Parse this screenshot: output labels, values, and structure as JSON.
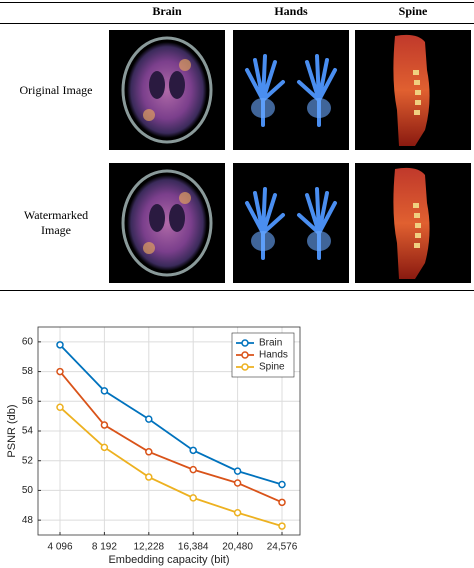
{
  "table": {
    "columns": [
      "Brain",
      "Hands",
      "Spine"
    ],
    "rows": [
      {
        "label": "Original Image"
      },
      {
        "label": "Watermarked Image"
      }
    ]
  },
  "chart_data": {
    "type": "line",
    "xlabel": "Embedding capacity (bit)",
    "ylabel": "PSNR (db)",
    "categories": [
      "4 096",
      "8 192",
      "12,228",
      "16,384",
      "20,480",
      "24,576"
    ],
    "series": [
      {
        "name": "Brain",
        "color": "#0072bd",
        "values": [
          59.8,
          56.7,
          54.8,
          52.7,
          51.3,
          50.4
        ]
      },
      {
        "name": "Hands",
        "color": "#d95319",
        "values": [
          58.0,
          54.4,
          52.6,
          51.4,
          50.5,
          49.2
        ]
      },
      {
        "name": "Spine",
        "color": "#edb120",
        "values": [
          55.6,
          52.9,
          50.9,
          49.5,
          48.5,
          47.6
        ]
      }
    ],
    "ylim": [
      47,
      61
    ],
    "yticks": [
      48,
      50,
      52,
      54,
      56,
      58,
      60
    ],
    "grid": true,
    "legend": "top-right"
  }
}
